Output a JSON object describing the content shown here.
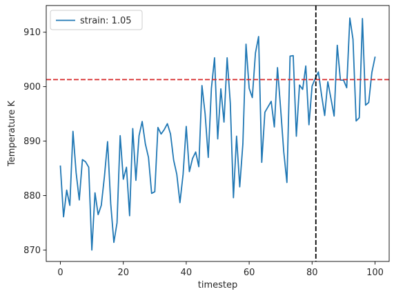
{
  "chart_data": {
    "type": "line",
    "xlabel": "timestep",
    "ylabel": "Temperature K",
    "xlim": [
      -4.5,
      104.5
    ],
    "ylim": [
      867.9,
      914.9
    ],
    "xticks": [
      0,
      20,
      40,
      60,
      80,
      100
    ],
    "yticks": [
      870,
      880,
      890,
      900,
      910
    ],
    "grid": false,
    "legend_position": "top-left",
    "series": [
      {
        "name": "strain: 1.05",
        "color": "#1f77b4",
        "x": [
          0,
          1,
          2,
          3,
          4,
          5,
          6,
          7,
          8,
          9,
          10,
          11,
          12,
          13,
          14,
          15,
          16,
          17,
          18,
          19,
          20,
          21,
          22,
          23,
          24,
          25,
          26,
          27,
          28,
          29,
          30,
          31,
          32,
          33,
          34,
          35,
          36,
          37,
          38,
          39,
          40,
          41,
          42,
          43,
          44,
          45,
          46,
          47,
          48,
          49,
          50,
          51,
          52,
          53,
          54,
          55,
          56,
          57,
          58,
          59,
          60,
          61,
          62,
          63,
          64,
          65,
          66,
          67,
          68,
          69,
          70,
          71,
          72,
          73,
          74,
          75,
          76,
          77,
          78,
          79,
          80,
          81,
          82,
          83,
          84,
          85,
          86,
          87,
          88,
          89,
          90,
          91,
          92,
          93,
          94,
          95,
          96,
          97,
          98,
          99,
          100
        ],
        "values": [
          885.4,
          876.1,
          881.0,
          878.2,
          891.8,
          884.2,
          879.2,
          886.6,
          886.2,
          885.2,
          870.0,
          880.5,
          876.5,
          878.2,
          883.5,
          889.9,
          878.5,
          871.4,
          875.0,
          891.0,
          883.0,
          885.2,
          876.3,
          892.3,
          882.8,
          891.0,
          893.6,
          889.5,
          887.0,
          880.4,
          880.7,
          892.5,
          891.3,
          892.1,
          893.2,
          891.3,
          886.5,
          883.9,
          878.7,
          883.9,
          892.7,
          884.4,
          886.8,
          888.0,
          885.3,
          900.2,
          895.0,
          887.0,
          899.7,
          905.3,
          890.4,
          899.6,
          893.5,
          905.3,
          897.0,
          879.6,
          890.9,
          881.6,
          889.5,
          907.8,
          899.7,
          898.0,
          906.2,
          909.2,
          886.1,
          895.3,
          896.3,
          897.3,
          892.6,
          903.5,
          896.0,
          888.0,
          882.4,
          905.6,
          905.7,
          890.9,
          900.3,
          899.5,
          903.8,
          893.0,
          900.1,
          901.5,
          902.7,
          898.5,
          894.7,
          900.9,
          897.8,
          894.6,
          907.6,
          901.2,
          901.2,
          899.8,
          912.6,
          908.7,
          893.7,
          894.3,
          912.5,
          896.6,
          897.1,
          902.6,
          905.4
        ]
      }
    ],
    "reference_lines": [
      {
        "orientation": "horizontal",
        "value": 901.3,
        "color": "#d62728",
        "style": "dashed"
      },
      {
        "orientation": "vertical",
        "value": 81.2,
        "color": "#000000",
        "style": "dashed"
      }
    ]
  }
}
